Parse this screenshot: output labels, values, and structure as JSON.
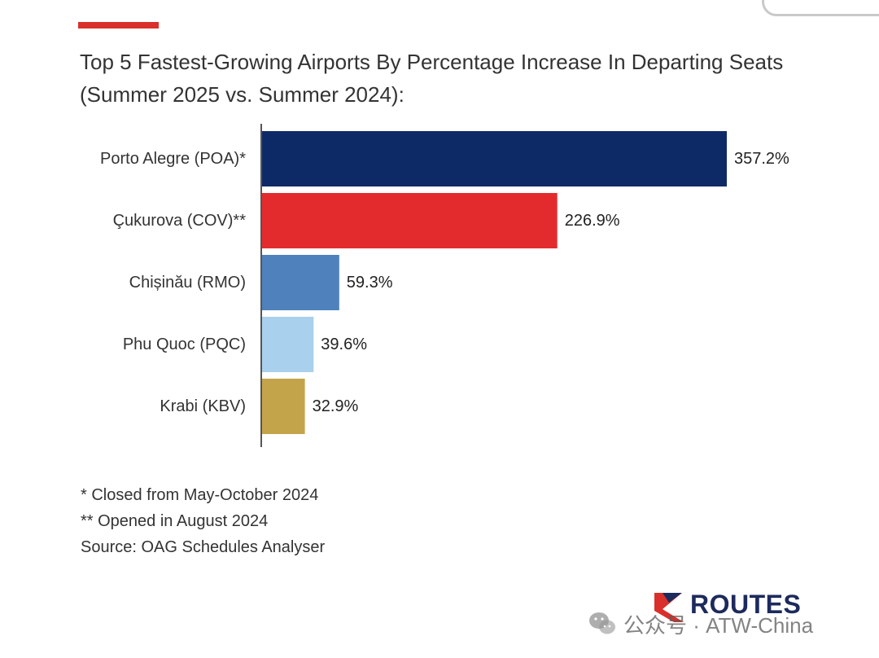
{
  "title": "Top 5 Fastest-Growing Airports By Percentage Increase In Departing Seats (Summer 2025 vs. Summer 2024):",
  "chart_data": {
    "type": "bar",
    "orientation": "horizontal",
    "categories": [
      "Porto Alegre (POA)*",
      "Çukurova (COV)**",
      "Chișinău (RMO)",
      "Phu Quoc (PQC)",
      "Krabi (KBV)"
    ],
    "values": [
      357.2,
      226.9,
      59.3,
      39.6,
      32.9
    ],
    "value_labels": [
      "357.2%",
      "226.9%",
      "59.3%",
      "39.6%",
      "32.9%"
    ],
    "colors": [
      "#0e2a66",
      "#e32b2e",
      "#4f81bd",
      "#a9d0ec",
      "#c4a44a"
    ],
    "title": "Top 5 Fastest-Growing Airports By Percentage Increase In Departing Seats (Summer 2025 vs. Summer 2024):",
    "xlabel": "",
    "ylabel": "",
    "xlim": [
      0,
      357.2
    ],
    "grid": false,
    "legend": "none"
  },
  "footnotes": [
    "* Closed from May-October 2024",
    "** Opened in August 2024",
    "Source: OAG Schedules Analyser"
  ],
  "logo": {
    "text": "ROUTES",
    "icon": "routes-logo-icon",
    "color": "#1d2a5c",
    "accent": "#d9302b"
  },
  "watermark": {
    "text": "公众号 · ATW-China",
    "icon": "wechat-icon"
  },
  "accent_color": "#d9302b"
}
